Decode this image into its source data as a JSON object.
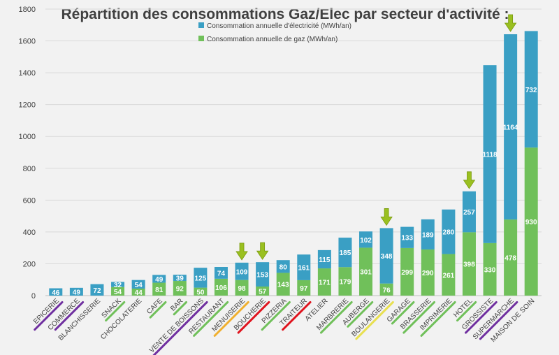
{
  "chart_data": {
    "type": "bar",
    "stacked": true,
    "title": "Répartition des consommations Gaz/Elec par secteur d'activité :",
    "xlabel": "",
    "ylabel": "",
    "ylim": [
      0,
      1800
    ],
    "yticks": [
      0,
      200,
      400,
      600,
      800,
      1000,
      1200,
      1400,
      1600,
      1800
    ],
    "grid": true,
    "legend_position": "top-center",
    "categories": [
      "EPICERIE",
      "COMMERCE",
      "BLANCHISSERIE",
      "SNACK",
      "CHOCOLATERIE",
      "CAFE",
      "BAR",
      "VENTE DE BOISSONS",
      "RESTAURANT",
      "MENUISERIE",
      "BOUCHERIE",
      "PIZZERIA",
      "TRAITEUR",
      "ATELIER",
      "MARBRERIE",
      "AUBERGE",
      "BOULANGERIE",
      "GARAGE",
      "BRASSERIE",
      "IMPRIMERIE",
      "HOTEL",
      "GROSSISTE",
      "SUPERMARCHE",
      "MAISON DE SOIN"
    ],
    "series": [
      {
        "name": "Consommation annuelle de gaz (MWh/an)",
        "color": "#70c05a",
        "values": [
          0,
          0,
          0,
          54,
          44,
          81,
          92,
          50,
          106,
          98,
          57,
          143,
          97,
          171,
          179,
          301,
          76,
          299,
          290,
          261,
          398,
          330,
          478,
          930
        ],
        "labels": [
          "",
          "",
          "",
          "54",
          "44",
          "81",
          "92",
          "50",
          "106",
          "98",
          "57",
          "143",
          "97",
          "171",
          "179",
          "301",
          "76",
          "299",
          "290",
          "261",
          "398",
          "330",
          "478",
          "930"
        ]
      },
      {
        "name": "Consommation annuelle d'électricité (MWh/an)",
        "color": "#3a9fc4",
        "values": [
          46,
          49,
          72,
          32,
          54,
          49,
          39,
          125,
          74,
          109,
          153,
          80,
          161,
          115,
          185,
          102,
          348,
          133,
          189,
          280,
          257,
          1118,
          1164,
          732
        ],
        "labels": [
          "46",
          "49",
          "72",
          "32",
          "54",
          "49",
          "39",
          "125",
          "74",
          "109",
          "153",
          "80",
          "161",
          "115",
          "185",
          "102",
          "348",
          "133",
          "189",
          "280",
          "257",
          "1118",
          "1164",
          "732"
        ]
      }
    ],
    "underline_colors": [
      "#7030a0",
      "#7030a0",
      "",
      "#70c05a",
      "",
      "#70c05a",
      "#70c05a",
      "#7030a0",
      "#70c05a",
      "#f0b030",
      "#e0141e",
      "#70c05a",
      "#e0141e",
      "",
      "#70c05a",
      "#70c05a",
      "#e8e050",
      "#70c05a",
      "#70c05a",
      "#70c05a",
      "#70c05a",
      "#7030a0",
      "#7030a0",
      ""
    ],
    "arrow_categories": [
      "MENUISERIE",
      "BOUCHERIE",
      "BOULANGERIE",
      "HOTEL",
      "SUPERMARCHE"
    ],
    "arrow_color": "#9ac020"
  }
}
